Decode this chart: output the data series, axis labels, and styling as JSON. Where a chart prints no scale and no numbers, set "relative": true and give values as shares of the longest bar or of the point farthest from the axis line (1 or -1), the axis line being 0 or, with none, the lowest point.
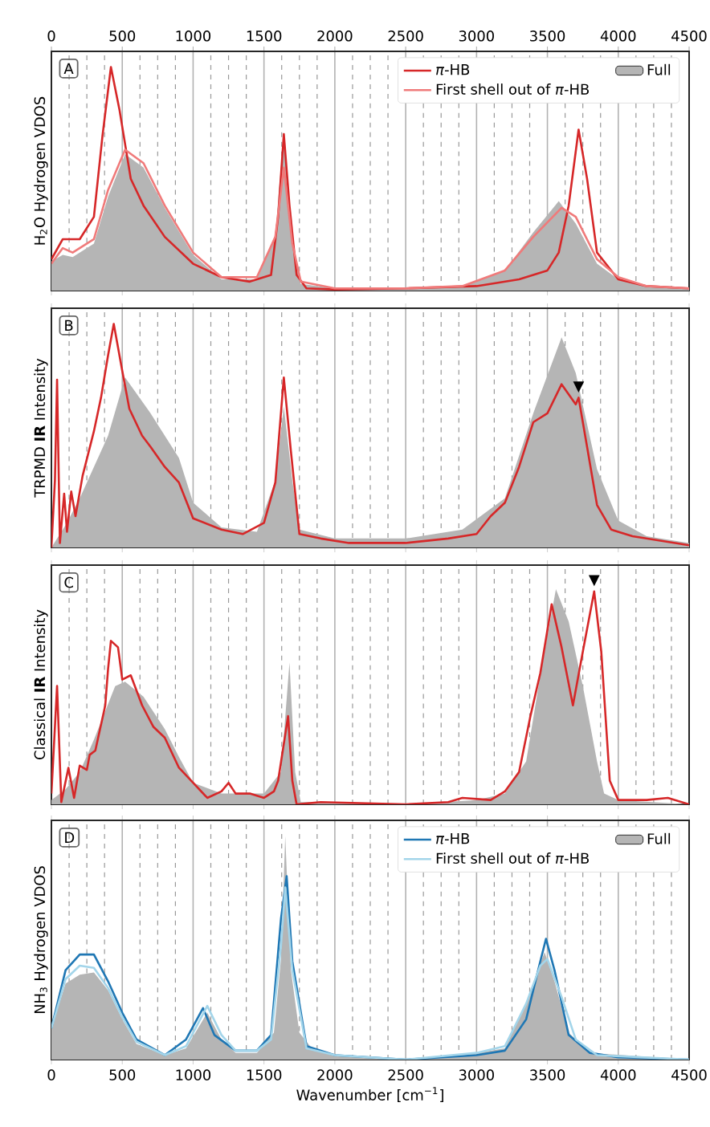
{
  "chart_data": [
    {
      "type": "line",
      "relative": true,
      "ylabel": "H$_{2}$O Hydrogen VDOS",
      "xlim": [
        0,
        4500
      ],
      "x2lim": [
        0,
        4500
      ],
      "x2ticks": [
        0,
        500,
        1000,
        1500,
        2000,
        2500,
        3000,
        3500,
        4000,
        4500
      ],
      "grid": "x",
      "legend": "top right",
      "annotations": [
        "A"
      ],
      "series": [
        {
          "name": "*π*-HB",
          "color": "#d62728",
          "x": [
            0,
            80,
            200,
            300,
            360,
            420,
            480,
            560,
            650,
            800,
            1000,
            1200,
            1400,
            1550,
            1600,
            1640,
            1680,
            1730,
            1800,
            2000,
            2500,
            3000,
            3300,
            3500,
            3580,
            3650,
            3720,
            3780,
            3850,
            4000,
            4200,
            4500
          ],
          "values": [
            0.14,
            0.23,
            0.23,
            0.33,
            0.69,
            1.0,
            0.81,
            0.5,
            0.38,
            0.24,
            0.12,
            0.06,
            0.04,
            0.07,
            0.33,
            0.7,
            0.38,
            0.07,
            0.01,
            0.005,
            0.01,
            0.02,
            0.05,
            0.09,
            0.17,
            0.38,
            0.72,
            0.5,
            0.17,
            0.05,
            0.02,
            0.01
          ]
        },
        {
          "name": "First shell out of *π*-HB",
          "color": "#f07a7a",
          "x": [
            0,
            80,
            150,
            300,
            400,
            520,
            650,
            800,
            1000,
            1200,
            1450,
            1580,
            1640,
            1700,
            1760,
            2000,
            2500,
            2900,
            3200,
            3400,
            3600,
            3700,
            3850,
            4000,
            4200,
            4500
          ],
          "values": [
            0.12,
            0.19,
            0.17,
            0.23,
            0.45,
            0.63,
            0.57,
            0.38,
            0.17,
            0.06,
            0.06,
            0.24,
            0.55,
            0.21,
            0.04,
            0.01,
            0.01,
            0.02,
            0.09,
            0.24,
            0.37,
            0.33,
            0.14,
            0.06,
            0.02,
            0.01
          ]
        },
        {
          "name": "Full",
          "type": "area",
          "color": "#b5b5b5",
          "x": [
            0,
            80,
            150,
            300,
            400,
            520,
            650,
            800,
            1000,
            1200,
            1450,
            1580,
            1640,
            1700,
            1760,
            2000,
            2500,
            2900,
            3200,
            3400,
            3580,
            3700,
            3850,
            4000,
            4200,
            4500
          ],
          "values": [
            0.13,
            0.16,
            0.15,
            0.21,
            0.42,
            0.61,
            0.55,
            0.37,
            0.16,
            0.05,
            0.05,
            0.25,
            0.71,
            0.2,
            0.03,
            0.01,
            0.01,
            0.02,
            0.09,
            0.26,
            0.4,
            0.3,
            0.12,
            0.05,
            0.02,
            0.01
          ]
        }
      ]
    },
    {
      "type": "line",
      "relative": true,
      "ylabel": "TRPMD **IR** Intensity",
      "xlim": [
        0,
        4500
      ],
      "xticks": [
        0,
        500,
        1000,
        1500,
        2000,
        2500,
        3000,
        3500,
        4000,
        4500
      ],
      "tick_labels": false,
      "grid": "x",
      "annotations": [
        "B",
        {
          "text": "▼",
          "x": 3720,
          "y": 0.67
        }
      ],
      "series": [
        {
          "type": "area",
          "color": "#b5b5b5",
          "x": [
            0,
            100,
            200,
            400,
            520,
            700,
            900,
            1000,
            1200,
            1450,
            1580,
            1640,
            1700,
            1750,
            2000,
            2500,
            2900,
            3200,
            3400,
            3600,
            3700,
            3850,
            4000,
            4200,
            4500
          ],
          "values": [
            0,
            0.1,
            0.22,
            0.5,
            0.76,
            0.6,
            0.4,
            0.2,
            0.09,
            0.07,
            0.3,
            0.63,
            0.3,
            0.08,
            0.04,
            0.04,
            0.08,
            0.22,
            0.6,
            0.94,
            0.78,
            0.35,
            0.12,
            0.05,
            0.02
          ]
        },
        {
          "color": "#d62728",
          "x": [
            0,
            25,
            40,
            60,
            90,
            110,
            140,
            170,
            220,
            300,
            350,
            400,
            440,
            500,
            550,
            640,
            700,
            800,
            900,
            1000,
            1200,
            1350,
            1500,
            1580,
            1640,
            1690,
            1750,
            1900,
            2100,
            2500,
            2800,
            3000,
            3100,
            3200,
            3300,
            3400,
            3500,
            3600,
            3700,
            3720,
            3780,
            3850,
            3950,
            4100,
            4300,
            4500
          ],
          "values": [
            0,
            0.3,
            0.75,
            0.02,
            0.24,
            0.07,
            0.25,
            0.14,
            0.32,
            0.52,
            0.67,
            0.86,
            1.0,
            0.79,
            0.62,
            0.5,
            0.45,
            0.36,
            0.29,
            0.13,
            0.08,
            0.06,
            0.11,
            0.29,
            0.76,
            0.43,
            0.06,
            0.04,
            0.02,
            0.02,
            0.04,
            0.06,
            0.14,
            0.2,
            0.36,
            0.56,
            0.6,
            0.73,
            0.64,
            0.67,
            0.45,
            0.19,
            0.08,
            0.05,
            0.03,
            0.01
          ]
        }
      ]
    },
    {
      "type": "line",
      "relative": true,
      "ylabel": "Classical **IR** Intensity",
      "xlim": [
        0,
        4500
      ],
      "xticks": [
        0,
        500,
        1000,
        1500,
        2000,
        2500,
        3000,
        3500,
        4000,
        4500
      ],
      "tick_labels": false,
      "grid": "x",
      "annotations": [
        "C",
        {
          "text": "▼",
          "x": 3830,
          "y": 0.99
        }
      ],
      "series": [
        {
          "type": "area",
          "color": "#b5b5b5",
          "x": [
            0,
            100,
            200,
            300,
            450,
            520,
            650,
            800,
            900,
            1000,
            1200,
            1500,
            1620,
            1680,
            1720,
            1760,
            2000,
            2500,
            3000,
            3200,
            3350,
            3450,
            3560,
            3650,
            3750,
            3850,
            3900,
            4000,
            4500
          ],
          "values": [
            0.02,
            0.07,
            0.15,
            0.3,
            0.55,
            0.57,
            0.5,
            0.35,
            0.22,
            0.1,
            0.05,
            0.05,
            0.15,
            0.66,
            0.15,
            0.01,
            0.01,
            0,
            0.02,
            0.05,
            0.2,
            0.6,
            1.0,
            0.85,
            0.55,
            0.2,
            0.05,
            0.02,
            0
          ]
        },
        {
          "color": "#d62728",
          "x": [
            0,
            40,
            70,
            120,
            160,
            200,
            250,
            270,
            310,
            380,
            400,
            420,
            470,
            500,
            560,
            640,
            720,
            800,
            900,
            1000,
            1100,
            1200,
            1250,
            1300,
            1400,
            1500,
            1570,
            1600,
            1670,
            1700,
            1730,
            1900,
            2500,
            2800,
            2900,
            3100,
            3200,
            3300,
            3380,
            3450,
            3530,
            3600,
            3680,
            3750,
            3830,
            3880,
            3940,
            4000,
            4200,
            4350,
            4500
          ],
          "values": [
            0.05,
            0.55,
            0.01,
            0.17,
            0.03,
            0.18,
            0.16,
            0.23,
            0.25,
            0.46,
            0.63,
            0.76,
            0.73,
            0.58,
            0.6,
            0.46,
            0.36,
            0.31,
            0.17,
            0.1,
            0.03,
            0.06,
            0.1,
            0.05,
            0.05,
            0.03,
            0.06,
            0.11,
            0.41,
            0.11,
            0,
            0.01,
            0,
            0.01,
            0.03,
            0.02,
            0.06,
            0.15,
            0.41,
            0.61,
            0.93,
            0.73,
            0.46,
            0.71,
            0.99,
            0.71,
            0.11,
            0.02,
            0.02,
            0.03,
            0
          ]
        }
      ]
    },
    {
      "type": "line",
      "relative": true,
      "ylabel": "NH$_{3}$ Hydrogen VDOS",
      "xlabel": "Wavenumber [cm$^{−1}$]",
      "xlim": [
        0,
        4500
      ],
      "xticks": [
        0,
        500,
        1000,
        1500,
        2000,
        2500,
        3000,
        3500,
        4000,
        4500
      ],
      "grid": "x",
      "legend": "top right",
      "annotations": [
        "D"
      ],
      "series": [
        {
          "name": "*π*-HB",
          "color": "#1f77b4",
          "x": [
            0,
            100,
            200,
            300,
            400,
            500,
            600,
            800,
            950,
            1070,
            1150,
            1300,
            1450,
            1550,
            1620,
            1660,
            1700,
            1800,
            2000,
            2500,
            3000,
            3200,
            3350,
            3450,
            3490,
            3550,
            3650,
            3800,
            4000,
            4500
          ],
          "values": [
            0.14,
            0.4,
            0.47,
            0.47,
            0.35,
            0.21,
            0.09,
            0.02,
            0.09,
            0.23,
            0.11,
            0.04,
            0.04,
            0.11,
            0.63,
            0.82,
            0.44,
            0.06,
            0.02,
            0,
            0.02,
            0.04,
            0.18,
            0.44,
            0.54,
            0.4,
            0.11,
            0.03,
            0.01,
            0
          ]
        },
        {
          "name": "First shell out of *π*-HB",
          "color": "#a3d5ea",
          "x": [
            0,
            100,
            200,
            300,
            400,
            500,
            600,
            800,
            950,
            1100,
            1200,
            1300,
            1450,
            1550,
            1620,
            1650,
            1700,
            1800,
            2000,
            2500,
            3000,
            3200,
            3350,
            3450,
            3500,
            3600,
            3700,
            3850,
            4500
          ],
          "values": [
            0.14,
            0.36,
            0.42,
            0.41,
            0.32,
            0.19,
            0.08,
            0.02,
            0.06,
            0.24,
            0.11,
            0.04,
            0.04,
            0.09,
            0.51,
            0.77,
            0.4,
            0.05,
            0.02,
            0,
            0.03,
            0.06,
            0.25,
            0.42,
            0.45,
            0.28,
            0.09,
            0.02,
            0
          ]
        },
        {
          "name": "Full",
          "type": "area",
          "color": "#b5b5b5",
          "x": [
            0,
            100,
            200,
            300,
            400,
            500,
            600,
            800,
            950,
            1100,
            1200,
            1300,
            1450,
            1570,
            1620,
            1650,
            1690,
            1750,
            1850,
            2000,
            2500,
            3000,
            3200,
            3350,
            3420,
            3480,
            3550,
            3650,
            3800,
            4500
          ],
          "values": [
            0.14,
            0.34,
            0.38,
            0.39,
            0.31,
            0.18,
            0.07,
            0.02,
            0.05,
            0.21,
            0.09,
            0.03,
            0.03,
            0.12,
            0.45,
            1.0,
            0.4,
            0.12,
            0.04,
            0.02,
            0,
            0.03,
            0.05,
            0.25,
            0.38,
            0.48,
            0.35,
            0.12,
            0.03,
            0
          ]
        }
      ]
    }
  ]
}
